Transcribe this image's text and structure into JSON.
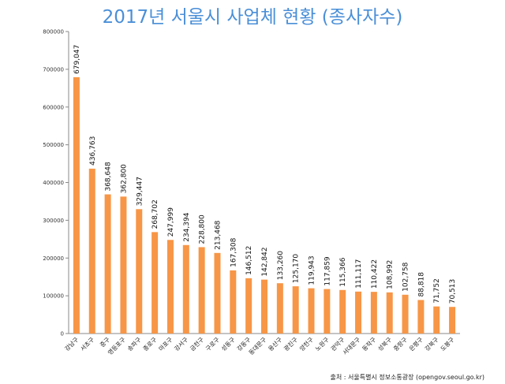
{
  "chart_data": {
    "type": "bar",
    "title": "2017년 서울시 사업체 현황 (종사자수)",
    "categories": [
      "강남구",
      "서초구",
      "중구",
      "영등포구",
      "송파구",
      "종로구",
      "마포구",
      "강서구",
      "금천구",
      "구로구",
      "성동구",
      "강동구",
      "동대문구",
      "용산구",
      "광진구",
      "양천구",
      "노원구",
      "관악구",
      "서대문구",
      "동작구",
      "성북구",
      "중랑구",
      "은평구",
      "강북구",
      "도봉구"
    ],
    "values": [
      679047,
      436763,
      368648,
      362800,
      329447,
      268702,
      247999,
      234394,
      228800,
      213468,
      167308,
      146512,
      142842,
      133260,
      125170,
      119943,
      117859,
      115366,
      111117,
      110422,
      108992,
      102758,
      88818,
      71752,
      70513
    ],
    "value_labels": [
      "679,047",
      "436,763",
      "368,648",
      "362,800",
      "329,447",
      "268,702",
      "247,999",
      "234,394",
      "228,800",
      "213,468",
      "167,308",
      "146,512",
      "142,842",
      "133,260",
      "125,170",
      "119,943",
      "117,859",
      "115,366",
      "111,117",
      "110,422",
      "108,992",
      "102,758",
      "88,818",
      "71,752",
      "70,513"
    ],
    "ylim": [
      0,
      800000
    ],
    "yticks": [
      0,
      100000,
      200000,
      300000,
      400000,
      500000,
      600000,
      700000,
      800000
    ],
    "grid": false,
    "legend": "none",
    "bar_color": "#f79646",
    "title_color": "#4a8fd8"
  },
  "source_note": "출처 : 서울특별시 정보소통광장 (opengov.seoul.go.kr)"
}
